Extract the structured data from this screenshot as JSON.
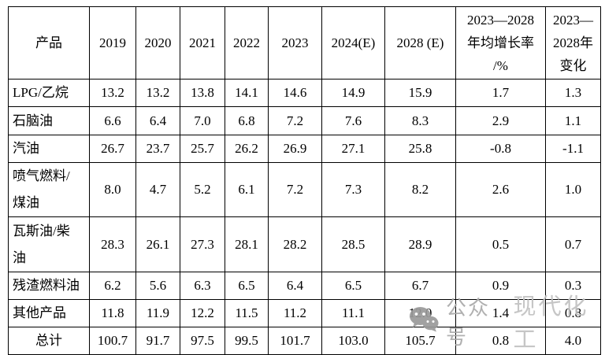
{
  "table": {
    "columns": [
      "产品",
      "2019",
      "2020",
      "2021",
      "2022",
      "2023",
      "2024(E)",
      "2028 (E)",
      "2023—2028\n年均增长率\n/%",
      "2023—\n2028年\n变化"
    ],
    "rows": [
      {
        "label": "LPG/乙烷",
        "values": [
          "13.2",
          "13.2",
          "13.8",
          "14.1",
          "14.6",
          "14.9",
          "15.9",
          "1.7",
          "1.3"
        ]
      },
      {
        "label": "石脑油",
        "values": [
          "6.6",
          "6.4",
          "7.0",
          "6.8",
          "7.2",
          "7.6",
          "8.3",
          "2.9",
          "1.1"
        ]
      },
      {
        "label": "汽油",
        "values": [
          "26.7",
          "23.7",
          "25.7",
          "26.2",
          "26.9",
          "27.1",
          "25.8",
          "-0.8",
          "-1.1"
        ]
      },
      {
        "label": "喷气燃料/\n煤油",
        "values": [
          "8.0",
          "4.7",
          "5.2",
          "6.1",
          "7.2",
          "7.3",
          "8.2",
          "2.6",
          "1.0"
        ]
      },
      {
        "label": "瓦斯油/柴\n油",
        "values": [
          "28.3",
          "26.1",
          "27.3",
          "28.1",
          "28.2",
          "28.5",
          "28.9",
          "0.5",
          "0.7"
        ]
      },
      {
        "label": "残渣燃料油",
        "values": [
          "6.2",
          "5.6",
          "6.3",
          "6.5",
          "6.4",
          "6.5",
          "6.7",
          "0.9",
          "0.3"
        ]
      },
      {
        "label": "其他产品",
        "values": [
          "11.8",
          "11.9",
          "12.2",
          "11.5",
          "11.2",
          "11.1",
          "12.0",
          "1.4",
          "0.8"
        ]
      },
      {
        "label": "总计",
        "values": [
          "100.7",
          "91.7",
          "97.5",
          "99.5",
          "101.7",
          "103.0",
          "105.7",
          "0.8",
          "4.0"
        ]
      }
    ]
  },
  "watermark": {
    "icon": "wechat-icon",
    "label": "公众号",
    "brand": "现代化工",
    "icon_color": "#9a9a9a"
  }
}
